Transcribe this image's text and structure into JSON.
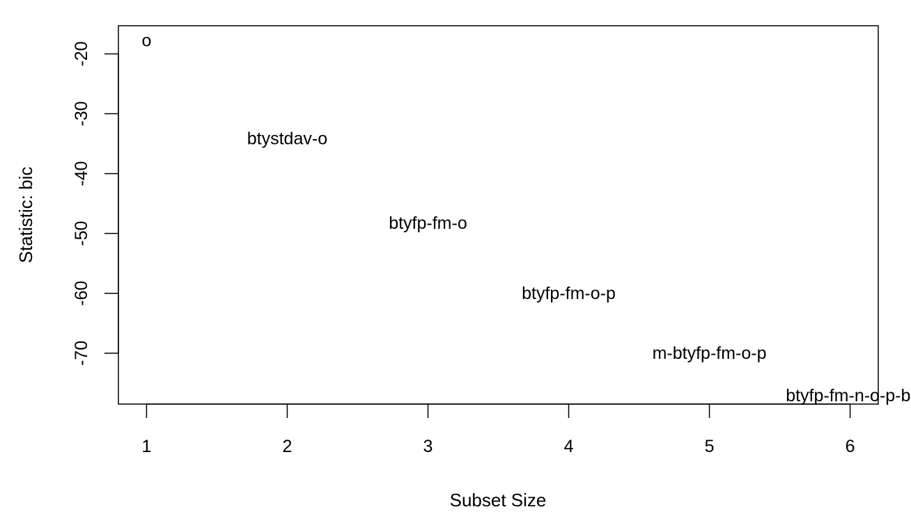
{
  "chart_data": {
    "type": "scatter",
    "title": "",
    "xlabel": "Subset Size",
    "ylabel": "Statistic: bic",
    "xlim": [
      0.8,
      6.2
    ],
    "ylim": [
      -78.5,
      -15.3
    ],
    "x_ticks": [
      "1",
      "2",
      "3",
      "4",
      "5",
      "6"
    ],
    "y_ticks": [
      "-20",
      "-30",
      "-40",
      "-50",
      "-60",
      "-70"
    ],
    "grid": false,
    "legend": "none",
    "points": [
      {
        "x": 1,
        "y": -17.8,
        "label": "o"
      },
      {
        "x": 2,
        "y": -34.2,
        "label": "btystdav-o"
      },
      {
        "x": 3,
        "y": -48.3,
        "label": "btyfp-fm-o"
      },
      {
        "x": 4,
        "y": -60.0,
        "label": "btyfp-fm-o-p"
      },
      {
        "x": 5,
        "y": -70.0,
        "label": "m-btyfp-fm-o-p"
      },
      {
        "x": 6,
        "y": -77.1,
        "label": "btyfp-fm-n-o-p-bl"
      }
    ]
  }
}
